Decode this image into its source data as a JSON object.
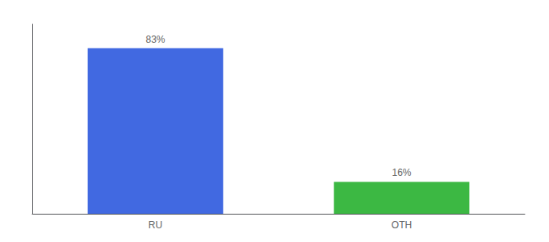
{
  "chart_data": {
    "type": "bar",
    "categories": [
      "RU",
      "OTH"
    ],
    "values": [
      83,
      16
    ],
    "value_labels": [
      "83%",
      "16%"
    ],
    "colors": [
      "#4169e1",
      "#3cb843"
    ],
    "ylim": [
      0,
      95
    ],
    "data_labels": true,
    "tick_labels": "x",
    "grid": false
  }
}
